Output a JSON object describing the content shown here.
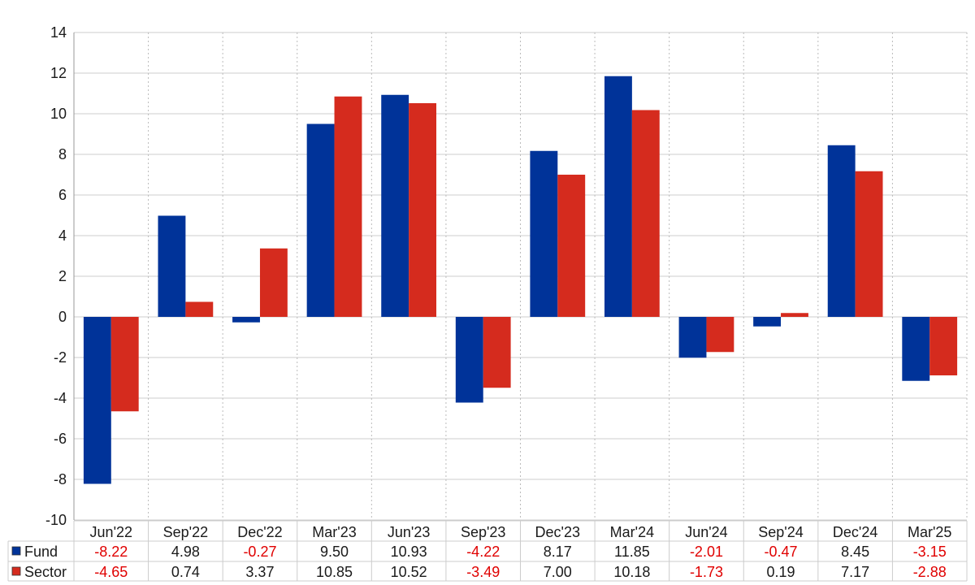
{
  "chart_data": {
    "type": "bar",
    "categories": [
      "Jun'22",
      "Sep'22",
      "Dec'22",
      "Mar'23",
      "Jun'23",
      "Sep'23",
      "Dec'23",
      "Mar'24",
      "Jun'24",
      "Sep'24",
      "Dec'24",
      "Mar'25"
    ],
    "series": [
      {
        "name": "Fund",
        "color": "#003399",
        "values": [
          -8.22,
          4.98,
          -0.27,
          9.5,
          10.93,
          -4.22,
          8.17,
          11.85,
          -2.01,
          -0.47,
          8.45,
          -3.15
        ]
      },
      {
        "name": "Sector",
        "color": "#d52b1e",
        "values": [
          -4.65,
          0.74,
          3.37,
          10.85,
          10.52,
          -3.49,
          7.0,
          10.18,
          -1.73,
          0.19,
          7.17,
          -2.88
        ]
      }
    ],
    "ylim": [
      -10,
      14
    ],
    "yticks": [
      14,
      12,
      10,
      8,
      6,
      4,
      2,
      0,
      -2,
      -4,
      -6,
      -8,
      -10
    ],
    "grid": true,
    "legend": "table-below",
    "negative_color": "#e00000",
    "positive_color": "#1a1a1a",
    "table": {
      "Fund": [
        "-8.22",
        "4.98",
        "-0.27",
        "9.50",
        "10.93",
        "-4.22",
        "8.17",
        "11.85",
        "-2.01",
        "-0.47",
        "8.45",
        "-3.15"
      ],
      "Sector": [
        "-4.65",
        "0.74",
        "3.37",
        "10.85",
        "10.52",
        "-3.49",
        "7.00",
        "10.18",
        "-1.73",
        "0.19",
        "7.17",
        "-2.88"
      ]
    }
  }
}
